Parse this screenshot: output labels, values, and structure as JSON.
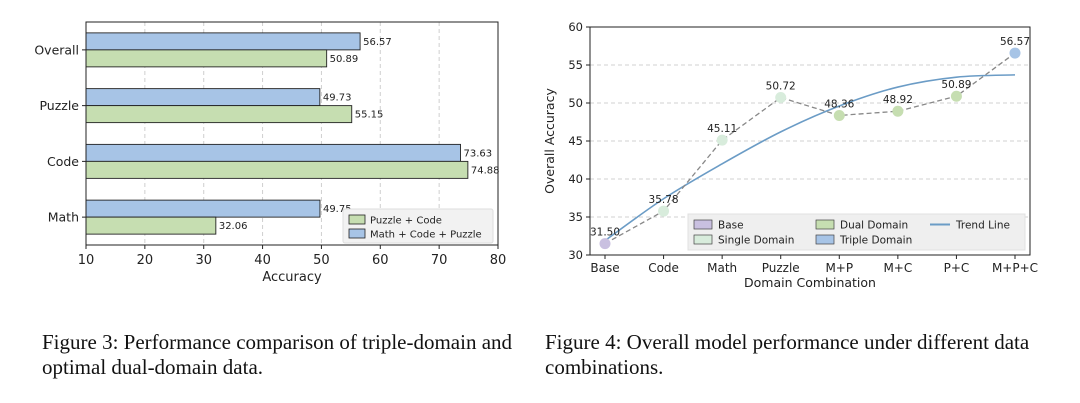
{
  "figure3": {
    "caption": "Figure 3: Performance comparison of triple-domain and optimal dual-domain data.",
    "chart_data": {
      "type": "bar",
      "orientation": "horizontal",
      "categories": [
        "Math",
        "Code",
        "Puzzle",
        "Overall"
      ],
      "series": [
        {
          "name": "Puzzle + Code",
          "values": [
            32.06,
            74.88,
            55.15,
            50.89
          ],
          "color": "#c6deb1"
        },
        {
          "name": "Math + Code + Puzzle",
          "values": [
            49.75,
            73.63,
            49.73,
            56.57
          ],
          "color": "#a7c4e6"
        }
      ],
      "value_labels": {
        "Puzzle + Code": [
          "32.06",
          "74.88",
          "55.15",
          "50.89"
        ],
        "Math + Code + Puzzle": [
          "49.75",
          "73.63",
          "49.73",
          "56.57"
        ]
      },
      "xlabel": "Accuracy",
      "xlim": [
        10,
        80
      ],
      "xticks": [
        "10",
        "20",
        "30",
        "40",
        "50",
        "60",
        "70",
        "80"
      ],
      "grid": "x-dashed",
      "legend_position": "lower-right"
    }
  },
  "figure4": {
    "caption": "Figure 4: Overall model performance under different data combinations.",
    "chart_data": {
      "type": "line",
      "categories": [
        "Base",
        "Code",
        "Math",
        "Puzzle",
        "M+P",
        "M+C",
        "P+C",
        "M+P+C"
      ],
      "values": [
        31.5,
        35.78,
        45.11,
        50.72,
        48.36,
        48.92,
        50.89,
        56.57
      ],
      "value_labels": [
        "31.50",
        "35.78",
        "45.11",
        "50.72",
        "48.36",
        "48.92",
        "50.89",
        "56.57"
      ],
      "point_groups": [
        "Base",
        "Single Domain",
        "Single Domain",
        "Single Domain",
        "Dual Domain",
        "Dual Domain",
        "Dual Domain",
        "Triple Domain"
      ],
      "group_colors": {
        "Base": "#c9c0e0",
        "Single Domain": "#d8ecdc",
        "Dual Domain": "#c6deb1",
        "Triple Domain": "#a7c4e6"
      },
      "trend_line": {
        "name": "Trend Line",
        "values": [
          31.9,
          37.4,
          42.0,
          46.2,
          49.6,
          52.1,
          53.4,
          53.7
        ],
        "color": "#6b9cc6"
      },
      "dashed_line_color": "#888888",
      "xlabel": "Domain Combination",
      "ylabel": "Overall Accuracy",
      "ylim": [
        30,
        60
      ],
      "yticks": [
        "30",
        "35",
        "40",
        "45",
        "50",
        "55",
        "60"
      ],
      "grid": "y-dashed",
      "legend_position": "lower-right",
      "legend_entries": [
        "Base",
        "Single Domain",
        "Dual Domain",
        "Triple Domain",
        "Trend Line"
      ]
    }
  }
}
